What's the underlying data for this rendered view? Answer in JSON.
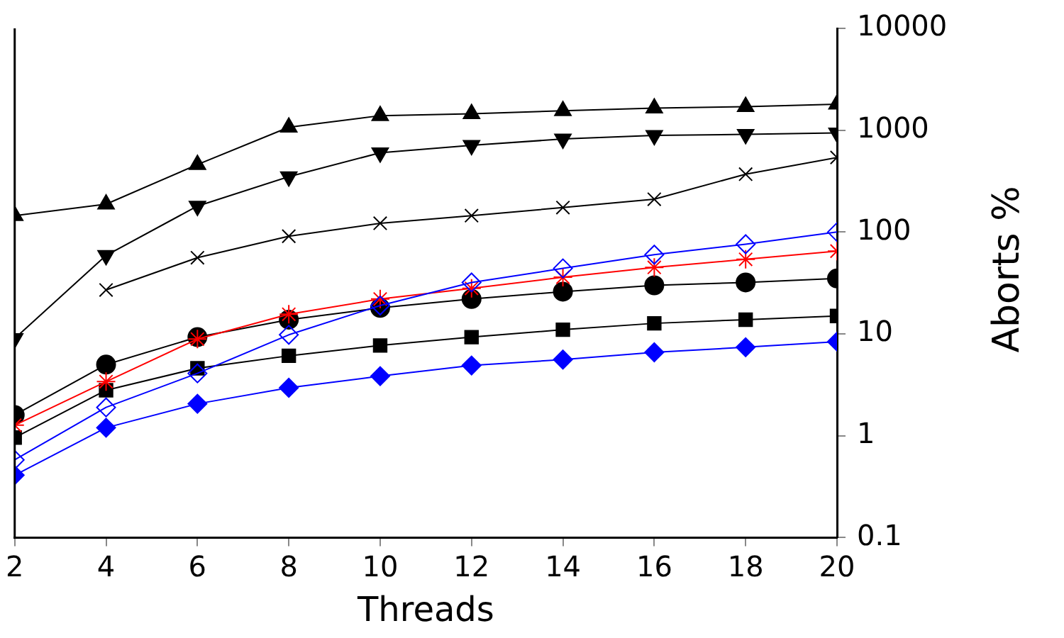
{
  "chart_data": {
    "type": "line",
    "xlabel": "Threads",
    "ylabel": "Aborts %",
    "x": [
      2,
      4,
      6,
      8,
      10,
      12,
      14,
      16,
      18,
      20
    ],
    "xlim": [
      2,
      20
    ],
    "xticks": [
      2,
      4,
      6,
      8,
      10,
      12,
      14,
      16,
      18,
      20
    ],
    "ylim": [
      0.1,
      10000
    ],
    "yticks": [
      0.1,
      1,
      10,
      100,
      1000,
      10000
    ],
    "log": "y",
    "grid": false,
    "legend": false,
    "line_style": "solid",
    "series": [
      {
        "color": "#000000",
        "marker": "triangle",
        "values": [
          145,
          188,
          460,
          1070,
          1390,
          1450,
          1550,
          1650,
          1700,
          1800
        ]
      },
      {
        "color": "#000000",
        "marker": "triangle-down",
        "values": [
          9,
          59,
          180,
          350,
          600,
          710,
          820,
          890,
          910,
          940
        ]
      },
      {
        "color": "#000000",
        "marker": "x",
        "values": [
          null,
          27,
          56,
          91,
          122,
          145,
          174,
          210,
          370,
          540
        ]
      },
      {
        "color": "#0000ff",
        "marker": "diamond-open",
        "values": [
          0.58,
          1.9,
          4.1,
          9.8,
          19,
          32,
          44,
          60,
          76,
          100
        ]
      },
      {
        "color": "#ff0000",
        "marker": "cross",
        "values": [
          1.27,
          3.4,
          8.9,
          15.6,
          22,
          28,
          36,
          45,
          54,
          65
        ]
      },
      {
        "color": "#000000",
        "marker": "circle",
        "values": [
          1.6,
          5.0,
          9.3,
          13.8,
          18,
          22,
          26,
          30,
          32,
          35
        ]
      },
      {
        "color": "#000000",
        "marker": "square",
        "values": [
          0.96,
          2.8,
          4.6,
          6.1,
          7.7,
          9.3,
          11,
          12.7,
          13.8,
          15
        ]
      },
      {
        "color": "#0000ff",
        "marker": "diamond",
        "values": [
          0.41,
          1.2,
          2.06,
          2.96,
          3.85,
          4.9,
          5.6,
          6.6,
          7.4,
          8.4
        ]
      }
    ]
  }
}
